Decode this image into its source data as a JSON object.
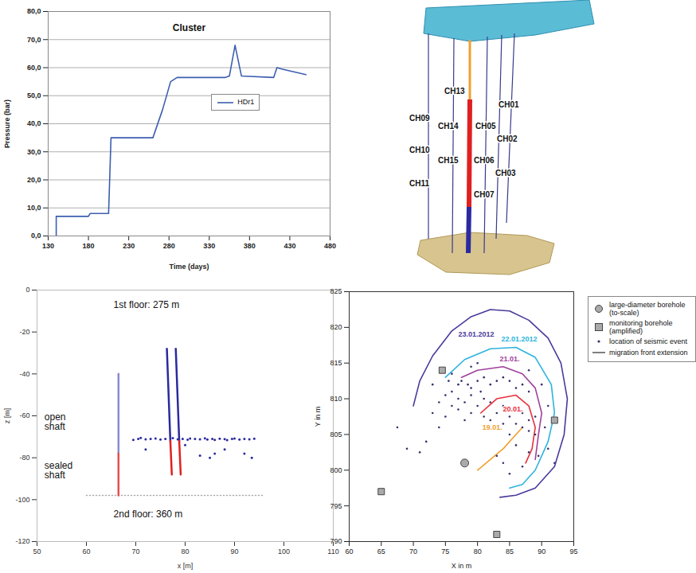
{
  "chart_data": [
    {
      "type": "line",
      "title": "Cluster",
      "x_label": "Time (days)",
      "y_label": "Pressure (bar)",
      "xlim": [
        130,
        480
      ],
      "xticks": [
        130,
        180,
        230,
        280,
        330,
        380,
        430,
        480
      ],
      "ylim": [
        0,
        80
      ],
      "yticks": [
        {
          "value": 0,
          "label": "0,0"
        },
        {
          "value": 10,
          "label": "10,0"
        },
        {
          "value": 20,
          "label": "20,0"
        },
        {
          "value": 30,
          "label": "30,0"
        },
        {
          "value": 40,
          "label": "40,0"
        },
        {
          "value": 50,
          "label": "50,0"
        },
        {
          "value": 60,
          "label": "60,0"
        },
        {
          "value": 70,
          "label": "70,0"
        },
        {
          "value": 80,
          "label": "80,0"
        }
      ],
      "grid": true,
      "legend": "right",
      "series": [
        {
          "name": "HDr1",
          "color": "#3d5eb0",
          "x": [
            140,
            140,
            180,
            182,
            205,
            208,
            260,
            272,
            282,
            290,
            350,
            355,
            362,
            370,
            410,
            414,
            420,
            450
          ],
          "values": [
            0,
            7,
            7,
            8,
            8,
            35,
            35,
            45,
            55,
            56.5,
            56.5,
            57,
            68,
            57,
            56.5,
            60,
            59.5,
            57.5
          ]
        }
      ]
    },
    {
      "type": "scatter",
      "x_label": "x [m]",
      "y_label": "z [m]",
      "xlim": [
        50,
        110
      ],
      "xticks": [
        50,
        60,
        70,
        80,
        90,
        100,
        110
      ],
      "ylim": [
        -120,
        0
      ],
      "yticks": [
        -120,
        -100,
        -80,
        -60,
        -40,
        -20,
        0
      ],
      "grid": false,
      "annotations": [
        {
          "text": "1st floor: 275 m",
          "x": 65.5,
          "y": -7
        },
        {
          "text": "2nd floor: 360 m",
          "x": 65.5,
          "y": -107
        },
        {
          "text": "open shaft",
          "x": 51.5,
          "y": -63
        },
        {
          "text": "sealed shaft",
          "x": 51.5,
          "y": -86
        }
      ],
      "series": [
        {
          "type": "line",
          "color": "#aaaaaa",
          "line_style": "dotted",
          "x": [
            60,
            96
          ],
          "values": [
            -98,
            -98
          ]
        },
        {
          "type": "line",
          "color": "#8a8ad0",
          "line_style": "solid",
          "x": [
            66.5,
            66.5
          ],
          "values": [
            -40,
            -78
          ]
        },
        {
          "type": "line",
          "color": "#e05050",
          "line_style": "solid",
          "x": [
            66.5,
            66.5
          ],
          "values": [
            -78,
            -98
          ]
        },
        {
          "type": "line",
          "color": "#2a2aa0",
          "line_style": "solid",
          "x": [
            76.3,
            77.0
          ],
          "values": [
            -28,
            -72
          ]
        },
        {
          "type": "line",
          "color": "#2a2aa0",
          "line_style": "solid",
          "x": [
            78.1,
            78.8
          ],
          "values": [
            -28,
            -72
          ]
        },
        {
          "type": "line",
          "color": "#e02020",
          "line_style": "solid",
          "x": [
            77.0,
            77.3
          ],
          "values": [
            -72,
            -88
          ]
        },
        {
          "type": "line",
          "color": "#e02020",
          "line_style": "solid",
          "x": [
            78.8,
            79.1
          ],
          "values": [
            -72,
            -88
          ]
        },
        {
          "type": "scatter",
          "color": "#2a2aa0",
          "marker": "dot",
          "x": [
            69.5,
            70.5,
            71,
            72,
            73,
            74,
            75,
            76,
            77.5,
            78.5,
            79.5,
            80.5,
            81,
            82,
            83,
            84,
            84.5,
            85.5,
            86,
            87,
            88,
            88.5,
            89.5,
            90,
            91,
            92,
            93,
            94,
            72,
            80,
            83,
            85,
            86,
            88,
            92,
            93.5
          ],
          "values": [
            -71.5,
            -71,
            -70.5,
            -71.2,
            -71,
            -70.8,
            -71.3,
            -71,
            -70.6,
            -71.2,
            -71,
            -71.4,
            -70.8,
            -71,
            -71.2,
            -70.7,
            -71.3,
            -71,
            -71.5,
            -70.9,
            -71.1,
            -71.6,
            -71,
            -70.8,
            -71.3,
            -71,
            -71.2,
            -70.9,
            -76,
            -74,
            -79,
            -80,
            -78,
            -76,
            -78,
            -80
          ]
        }
      ]
    },
    {
      "type": "scatter",
      "x_label": "X in m",
      "y_label": "Y in m",
      "xlim": [
        60,
        95
      ],
      "xticks": [
        60,
        65,
        70,
        75,
        80,
        85,
        90,
        95
      ],
      "ylim": [
        790,
        825
      ],
      "yticks": [
        790,
        795,
        800,
        805,
        810,
        815,
        820,
        825
      ],
      "grid": false,
      "legend": "right",
      "annotations": [
        {
          "text": "23.01.2012",
          "x": 79.8,
          "y": 819.0,
          "color": "#4a3a9c"
        },
        {
          "text": "22.01.2012",
          "x": 86.5,
          "y": 818.3,
          "color": "#2cb4dc"
        },
        {
          "text": "21.01.",
          "x": 85,
          "y": 815.6,
          "color": "#a0409c"
        },
        {
          "text": "20.01.",
          "x": 85.5,
          "y": 808.5,
          "color": "#e8303c"
        },
        {
          "text": "19.01.",
          "x": 82.3,
          "y": 806,
          "color": "#f2a030"
        }
      ],
      "series": [
        {
          "name": "large-diameter borehole (to-scale)",
          "type": "scatter",
          "marker": "circle",
          "color": "#aaaaaa",
          "x": [
            78
          ],
          "values": [
            801
          ]
        },
        {
          "name": "monitoring borehole (amplified)",
          "type": "scatter",
          "marker": "square",
          "color": "#aaaaaa",
          "x": [
            74.5,
            92,
            65,
            83
          ],
          "values": [
            814,
            807,
            797,
            791
          ]
        },
        {
          "name": "location of seismic event",
          "type": "scatter",
          "marker": "dot",
          "color": "#3a2f6e",
          "x": [
            73,
            74,
            75,
            76,
            77,
            77.5,
            78.5,
            79,
            80,
            81,
            82,
            83,
            84,
            85,
            86,
            87,
            88,
            76,
            77,
            78,
            79,
            80,
            81,
            82,
            83,
            84,
            85,
            86,
            87,
            88,
            89,
            89,
            88,
            87,
            86,
            85,
            84,
            83,
            82,
            81,
            78,
            77,
            75,
            74,
            72,
            71,
            73,
            76,
            80,
            79,
            88,
            90,
            91,
            90.5,
            89.5,
            88,
            86,
            87,
            85,
            84,
            83,
            91,
            92,
            79,
            80.5,
            75.5,
            69,
            67.5
          ],
          "values": [
            808,
            809.5,
            810.5,
            811,
            812,
            812.5,
            812,
            811.5,
            812.5,
            813,
            812,
            812.5,
            813,
            812.5,
            811.5,
            812,
            811,
            809,
            808.5,
            809.5,
            808,
            809,
            810,
            809.5,
            808,
            809,
            807.5,
            808.5,
            808,
            807,
            807.5,
            805,
            805.5,
            806,
            806.5,
            805,
            806.5,
            806,
            807,
            807.5,
            807,
            810,
            807.5,
            806,
            804,
            802.5,
            812,
            813.5,
            815,
            814.5,
            814,
            812,
            809,
            806,
            802,
            802.5,
            803.5,
            800.5,
            799.5,
            801,
            802,
            803,
            801,
            810.5,
            811,
            812.5,
            803,
            806
          ]
        },
        {
          "name": "migration front extension",
          "type": "line",
          "color": "#555555",
          "lines": [
            {
              "color": "#4a3a9c",
              "x": [
                70,
                71,
                73,
                76,
                79,
                82,
                85,
                88,
                91,
                93,
                94,
                93.5,
                92,
                89,
                86,
                83.5
              ],
              "values": [
                809,
                812.5,
                816,
                819.5,
                821.5,
                822.5,
                822.3,
                821,
                818.5,
                815,
                810,
                805,
                800.5,
                797.5,
                796.5,
                796.2
              ]
            },
            {
              "color": "#2cb4dc",
              "x": [
                75,
                78,
                82,
                86,
                89,
                91.5,
                92,
                91,
                89,
                87,
                85
              ],
              "values": [
                813,
                815.5,
                817,
                817.2,
                815.8,
                812,
                808,
                804,
                800,
                798,
                797.5
              ]
            },
            {
              "color": "#a0409c",
              "x": [
                77.5,
                80,
                84,
                87,
                89,
                90,
                89.5,
                89
              ],
              "values": [
                813,
                814,
                814.5,
                813.5,
                811.5,
                808,
                805,
                801.5
              ]
            },
            {
              "color": "#e8303c",
              "x": [
                80.5,
                83,
                86,
                88,
                89,
                88.5,
                87.5
              ],
              "values": [
                808,
                810,
                810.5,
                809,
                806,
                803,
                801
              ]
            },
            {
              "color": "#f2a030",
              "x": [
                80,
                84,
                87
              ],
              "values": [
                800,
                803,
                806
              ]
            }
          ]
        }
      ]
    }
  ],
  "diagram": {
    "labels": [
      "CH13",
      "CH09",
      "CH14",
      "CH05",
      "CH01",
      "CH02",
      "CH10",
      "CH15",
      "CH06",
      "CH03",
      "CH11",
      "CH07"
    ]
  }
}
